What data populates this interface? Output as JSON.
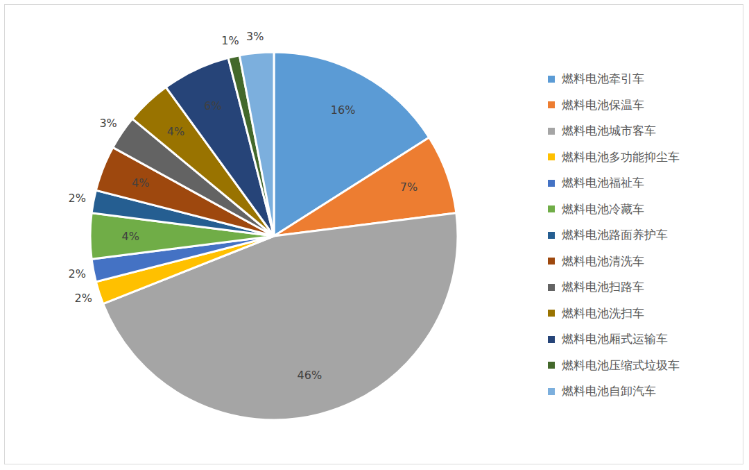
{
  "chart_data": {
    "type": "pie",
    "categories": [
      "燃料电池牵引车",
      "燃料电池保温车",
      "燃料电池城市客车",
      "燃料电池多功能抑尘车",
      "燃料电池福祉车",
      "燃料电池冷藏车",
      "燃料电池路面养护车",
      "燃料电池清洗车",
      "燃料电池扫路车",
      "燃料电池洗扫车",
      "燃料电池厢式运输车",
      "燃料电池压缩式垃圾车",
      "燃料电池自卸汽车"
    ],
    "values": [
      16,
      7,
      46,
      2,
      2,
      4,
      2,
      4,
      3,
      4,
      6,
      1,
      3
    ],
    "value_labels": [
      "16%",
      "7%",
      "46%",
      "2%",
      "2%",
      "4%",
      "2%",
      "4%",
      "3%",
      "4%",
      "6%",
      "1%",
      "3%"
    ],
    "colors": [
      "#5b9bd5",
      "#ed7d31",
      "#a5a5a5",
      "#ffc000",
      "#4472c4",
      "#70ad47",
      "#255e91",
      "#9e480e",
      "#636363",
      "#997300",
      "#264478",
      "#43682b",
      "#7cafdd"
    ],
    "legend": "right",
    "data_labels": true
  }
}
